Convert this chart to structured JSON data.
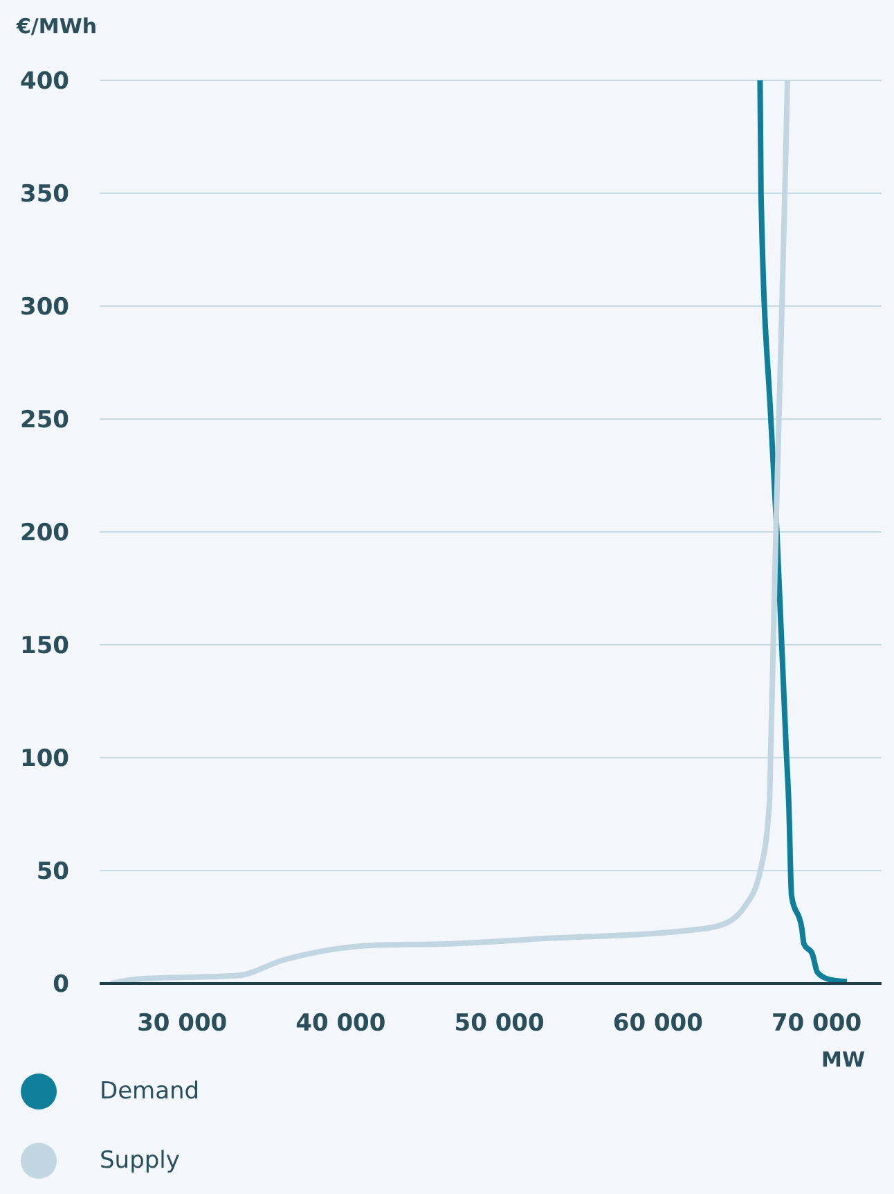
{
  "chart_data": {
    "type": "line",
    "ylabel": "€/MWh",
    "xlabel": "MW",
    "xlim": [
      24800,
      74100
    ],
    "xticks": [
      {
        "value": 30000,
        "label": "30 000"
      },
      {
        "value": 40000,
        "label": "40 000"
      },
      {
        "value": 50000,
        "label": "50 000"
      },
      {
        "value": 60000,
        "label": "60 000"
      },
      {
        "value": 70000,
        "label": "70 000"
      }
    ],
    "ylim": [
      0,
      400
    ],
    "yticks": [
      0,
      50,
      100,
      150,
      200,
      250,
      300,
      350,
      400
    ],
    "grid": "y",
    "legend": "bottom left",
    "series": [
      {
        "name": "Demand",
        "color": "#0e7f9a",
        "x": [
          66440,
          66500,
          67120,
          67500,
          68080,
          68250,
          68430,
          69070,
          69210,
          69740,
          70050,
          70700,
          71920
        ],
        "values": [
          400,
          350,
          250,
          200,
          105,
          80,
          38.6,
          24.5,
          17.5,
          13,
          5,
          2,
          0.8
        ]
      },
      {
        "name": "Supply",
        "color": "#c2d6e2",
        "x": [
          25510,
          27290,
          33490,
          36440,
          42320,
          46560,
          53060,
          61240,
          63850,
          65460,
          66460,
          67030,
          67120,
          67440,
          67820,
          68000,
          68170
        ],
        "values": [
          0,
          2,
          3.5,
          10.5,
          17,
          17.5,
          20,
          23,
          25.6,
          34,
          50,
          80,
          105,
          200,
          300,
          350,
          400
        ]
      }
    ]
  }
}
